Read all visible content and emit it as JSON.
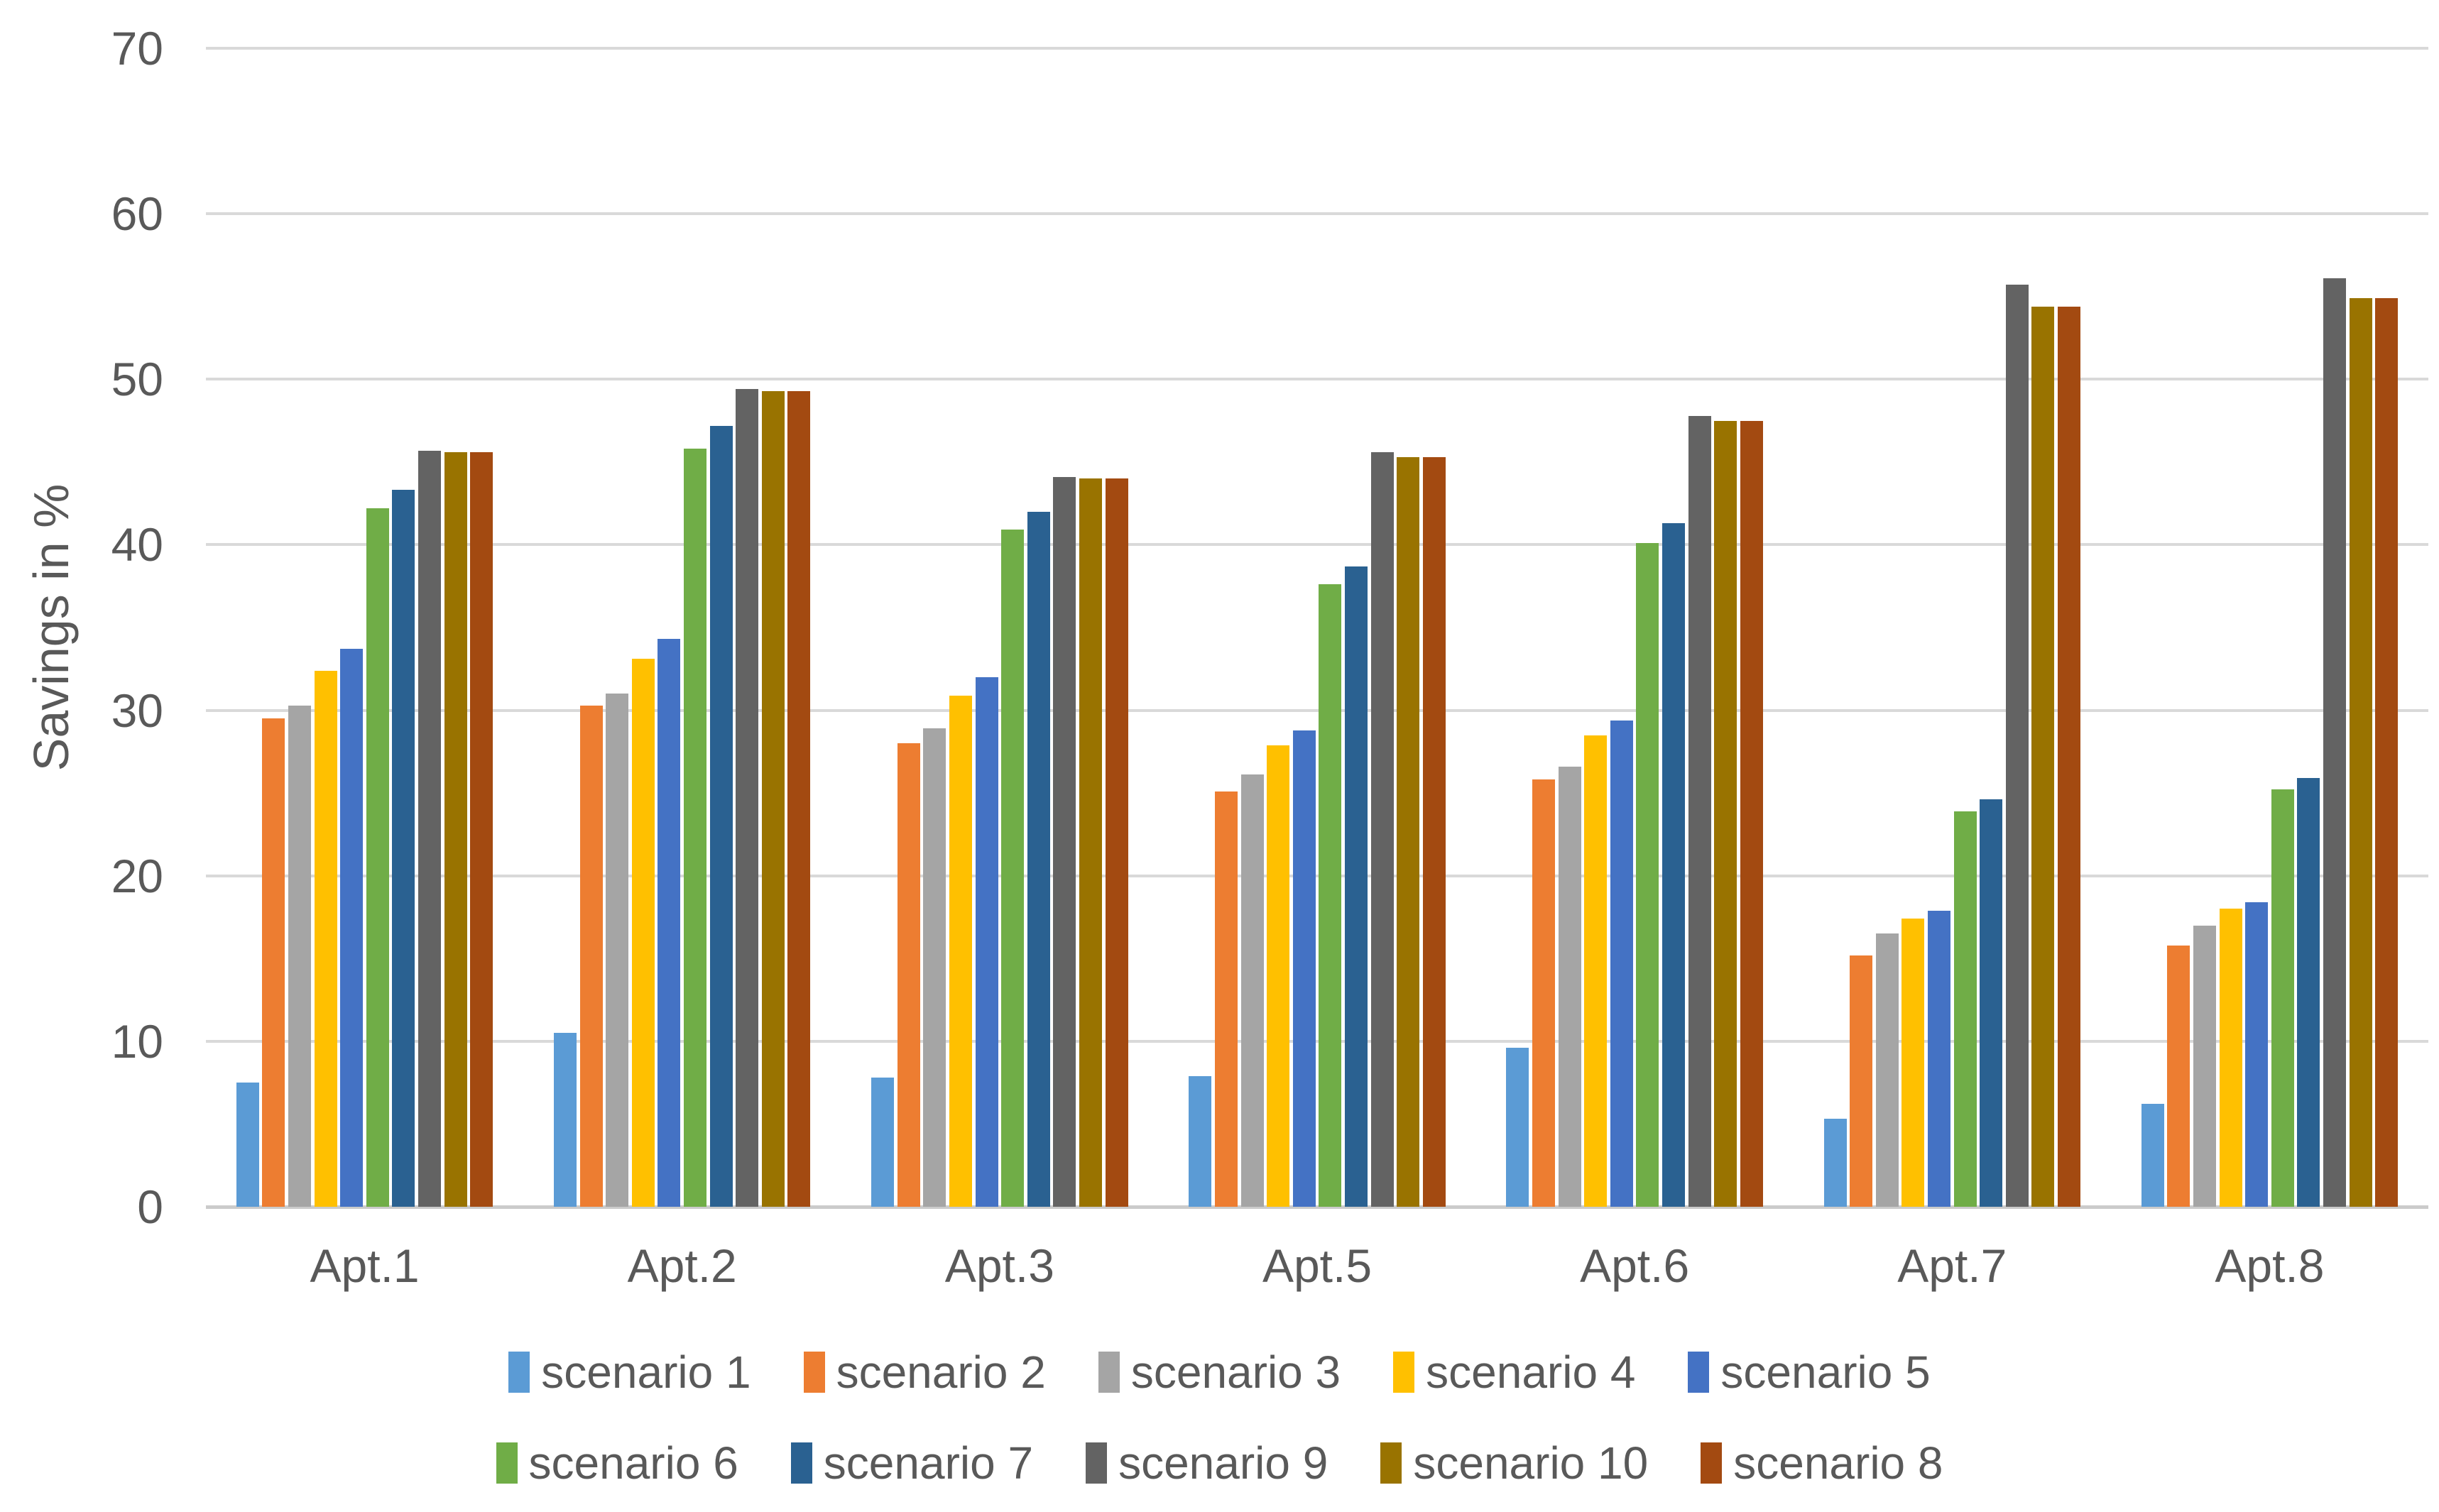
{
  "y_axis": {
    "title": "Savings in %",
    "tick_labels": [
      "0",
      "10",
      "20",
      "30",
      "40",
      "50",
      "60",
      "70"
    ],
    "min": 0,
    "max": 70,
    "step": 10
  },
  "text_color": "#595959",
  "gridline_color": "#D9D9D9",
  "chart_data": {
    "type": "bar",
    "title": "",
    "xlabel": "",
    "ylabel": "Savings in %",
    "ylim": [
      0,
      70
    ],
    "grid": true,
    "legend_position": "bottom",
    "legend_rows": [
      [
        "scenario 1",
        "scenario 2",
        "scenario 3",
        "scenario 4",
        "scenario 5"
      ],
      [
        "scenario 6",
        "scenario 7",
        "scenario 9",
        "scenario 10",
        "scenario 8"
      ]
    ],
    "categories": [
      "Apt.1",
      "Apt.2",
      "Apt.3",
      "Apt.5",
      "Apt.6",
      "Apt.7",
      "Apt.8"
    ],
    "series": [
      {
        "name": "scenario 1",
        "color": "#5B9BD5",
        "values": [
          7.5,
          10.5,
          7.8,
          7.9,
          9.6,
          5.3,
          6.2
        ]
      },
      {
        "name": "scenario 2",
        "color": "#ED7D31",
        "values": [
          29.5,
          30.3,
          28.0,
          25.1,
          25.8,
          15.2,
          15.8
        ]
      },
      {
        "name": "scenario 3",
        "color": "#A5A5A5",
        "values": [
          30.3,
          31.0,
          28.9,
          26.1,
          26.6,
          16.5,
          17.0
        ]
      },
      {
        "name": "scenario 4",
        "color": "#FFC000",
        "values": [
          32.4,
          33.1,
          30.9,
          27.9,
          28.5,
          17.4,
          18.0
        ]
      },
      {
        "name": "scenario 5",
        "color": "#4472C4",
        "values": [
          33.7,
          34.3,
          32.0,
          28.8,
          29.4,
          17.9,
          18.4
        ]
      },
      {
        "name": "scenario 6",
        "color": "#70AD47",
        "values": [
          42.2,
          45.8,
          40.9,
          37.6,
          40.1,
          23.9,
          25.2
        ]
      },
      {
        "name": "scenario 7",
        "color": "#2A6191",
        "values": [
          43.3,
          47.2,
          42.0,
          38.7,
          41.3,
          24.6,
          25.9
        ]
      },
      {
        "name": "scenario 9",
        "color": "#636363",
        "values": [
          45.7,
          49.4,
          44.1,
          45.6,
          47.8,
          55.7,
          56.1
        ]
      },
      {
        "name": "scenario 10",
        "color": "#997300",
        "values": [
          45.6,
          49.3,
          44.0,
          45.3,
          47.5,
          54.4,
          54.9
        ]
      },
      {
        "name": "scenario 8",
        "color": "#A34A11",
        "values": [
          45.6,
          49.3,
          44.0,
          45.3,
          47.5,
          54.4,
          54.9
        ]
      }
    ]
  }
}
